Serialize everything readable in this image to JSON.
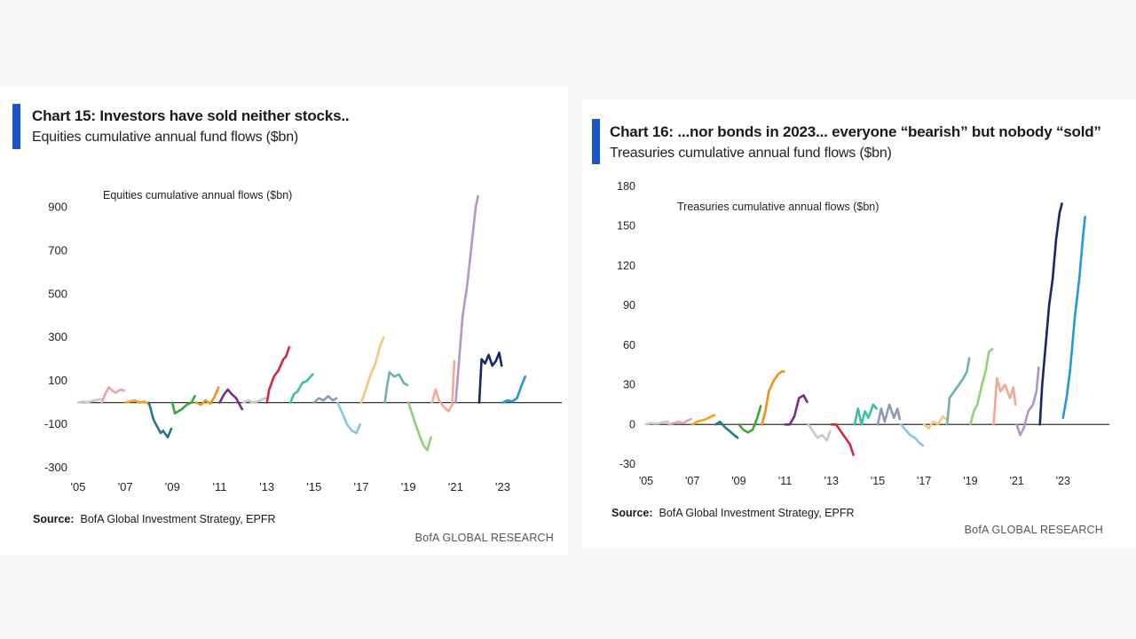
{
  "panels": [
    {
      "id": "chart15",
      "title": "Chart 15: Investors have sold neither stocks..",
      "subtitle": "Equities cumulative annual fund flows ($bn)",
      "source_label": "Source:",
      "source_text": "BofA Global Investment Strategy, EPFR",
      "brand": "BofA GLOBAL RESEARCH"
    },
    {
      "id": "chart16",
      "title": "Chart 16: ...nor bonds in 2023...  everyone “bearish” but nobody “sold”",
      "subtitle": "Treasuries cumulative annual fund flows ($bn)",
      "source_label": "Source:",
      "source_text": "BofA Global Investment Strategy, EPFR",
      "brand": "BofA GLOBAL RESEARCH"
    }
  ],
  "chart_data": [
    {
      "type": "line",
      "title": "Equities cumulative annual flows ($bn)",
      "xlabel": "",
      "ylabel": "",
      "xlim": [
        2005,
        2025.5
      ],
      "ylim": [
        -300,
        1000
      ],
      "yticks": [
        -300,
        -100,
        100,
        300,
        500,
        700,
        900
      ],
      "yticklabels": [
        "-300",
        "-100",
        "100",
        "300",
        "500",
        "700",
        "900"
      ],
      "xticks": [
        2005,
        2007,
        2009,
        2011,
        2013,
        2015,
        2017,
        2019,
        2021,
        2023
      ],
      "xticklabels": [
        "'05",
        "'07",
        "'09",
        "'11",
        "'13",
        "'15",
        "'17",
        "'19",
        "'21",
        "'23"
      ],
      "grid": false,
      "series": [
        {
          "color": "#c8c8c8",
          "x": [
            2005.0,
            2005.2,
            2005.4,
            2005.6,
            2005.8,
            2005.95
          ],
          "y": [
            0,
            5,
            2,
            8,
            12,
            15
          ]
        },
        {
          "color": "#e8a0aa",
          "x": [
            2006.0,
            2006.15,
            2006.3,
            2006.45,
            2006.6,
            2006.8,
            2006.95
          ],
          "y": [
            0,
            40,
            70,
            55,
            45,
            60,
            55
          ]
        },
        {
          "color": "#f0a020",
          "x": [
            2007.0,
            2007.2,
            2007.4,
            2007.6,
            2007.8,
            2007.95
          ],
          "y": [
            0,
            5,
            10,
            0,
            5,
            -5
          ]
        },
        {
          "color": "#1f7a8c",
          "x": [
            2008.0,
            2008.1,
            2008.2,
            2008.4,
            2008.5,
            2008.6,
            2008.8,
            2008.95
          ],
          "y": [
            0,
            -40,
            -80,
            -120,
            -140,
            -130,
            -160,
            -120
          ]
        },
        {
          "color": "#3aa835",
          "x": [
            2009.0,
            2009.1,
            2009.25,
            2009.4,
            2009.6,
            2009.8,
            2009.95
          ],
          "y": [
            0,
            -50,
            -40,
            -30,
            -10,
            0,
            30
          ]
        },
        {
          "color": "#f0901a",
          "x": [
            2010.0,
            2010.2,
            2010.4,
            2010.6,
            2010.8,
            2010.95
          ],
          "y": [
            0,
            -10,
            10,
            -5,
            30,
            70
          ]
        },
        {
          "color": "#7a2a8a",
          "x": [
            2011.0,
            2011.2,
            2011.35,
            2011.5,
            2011.7,
            2011.85,
            2011.95
          ],
          "y": [
            0,
            40,
            60,
            40,
            20,
            -10,
            -30
          ]
        },
        {
          "color": "#c8c8c8",
          "x": [
            2012.0,
            2012.2,
            2012.4,
            2012.6,
            2012.8,
            2012.95
          ],
          "y": [
            0,
            10,
            0,
            5,
            15,
            20
          ]
        },
        {
          "color": "#d0283e",
          "x": [
            2013.0,
            2013.1,
            2013.3,
            2013.5,
            2013.7,
            2013.8,
            2013.95
          ],
          "y": [
            0,
            60,
            120,
            150,
            200,
            210,
            255
          ]
        },
        {
          "color": "#3cbfa8",
          "x": [
            2014.0,
            2014.15,
            2014.3,
            2014.5,
            2014.7,
            2014.85,
            2014.95
          ],
          "y": [
            0,
            40,
            50,
            90,
            100,
            120,
            130
          ]
        },
        {
          "color": "#8a9ab8",
          "x": [
            2015.0,
            2015.2,
            2015.4,
            2015.6,
            2015.8,
            2015.95
          ],
          "y": [
            0,
            20,
            10,
            30,
            10,
            20
          ]
        },
        {
          "color": "#80c8ea",
          "x": [
            2016.0,
            2016.2,
            2016.4,
            2016.6,
            2016.8,
            2016.95
          ],
          "y": [
            0,
            -50,
            -100,
            -130,
            -140,
            -100
          ]
        },
        {
          "color": "#f5c878",
          "x": [
            2017.0,
            2017.2,
            2017.4,
            2017.6,
            2017.8,
            2017.95
          ],
          "y": [
            0,
            60,
            130,
            180,
            260,
            300
          ]
        },
        {
          "color": "#6fb0b0",
          "x": [
            2018.0,
            2018.1,
            2018.2,
            2018.4,
            2018.6,
            2018.8,
            2018.95
          ],
          "y": [
            0,
            80,
            140,
            120,
            130,
            90,
            80
          ]
        },
        {
          "color": "#8fd07a",
          "x": [
            2019.0,
            2019.15,
            2019.3,
            2019.5,
            2019.65,
            2019.8,
            2019.95
          ],
          "y": [
            0,
            -50,
            -100,
            -160,
            -200,
            -220,
            -160
          ]
        },
        {
          "color": "#f5a890",
          "x": [
            2020.0,
            2020.15,
            2020.3,
            2020.5,
            2020.7,
            2020.85,
            2020.95
          ],
          "y": [
            0,
            60,
            10,
            -20,
            -40,
            -10,
            190
          ]
        },
        {
          "color": "#b095c8",
          "x": [
            2021.0,
            2021.15,
            2021.3,
            2021.5,
            2021.7,
            2021.85,
            2021.95
          ],
          "y": [
            0,
            200,
            400,
            550,
            750,
            900,
            950
          ]
        },
        {
          "color": "#17276a",
          "x": [
            2022.0,
            2022.1,
            2022.25,
            2022.4,
            2022.55,
            2022.7,
            2022.85,
            2022.95
          ],
          "y": [
            0,
            200,
            180,
            220,
            170,
            190,
            230,
            170
          ]
        },
        {
          "color": "#2298d8",
          "x": [
            2023.0,
            2023.2,
            2023.4,
            2023.6,
            2023.8,
            2023.95
          ],
          "y": [
            0,
            10,
            5,
            20,
            80,
            120
          ]
        }
      ]
    },
    {
      "type": "line",
      "title": "Treasuries cumulative annual flows ($bn)",
      "xlabel": "",
      "ylabel": "",
      "xlim": [
        2005,
        2025.0
      ],
      "ylim": [
        -30,
        180
      ],
      "yticks": [
        -30,
        0,
        30,
        60,
        90,
        120,
        150,
        180
      ],
      "yticklabels": [
        "-30",
        "0",
        "30",
        "60",
        "90",
        "120",
        "150",
        "180"
      ],
      "xticks": [
        2005,
        2007,
        2009,
        2011,
        2013,
        2015,
        2017,
        2019,
        2021,
        2023
      ],
      "xticklabels": [
        "'05",
        "'07",
        "'09",
        "'11",
        "'13",
        "'15",
        "'17",
        "'19",
        "'21",
        "'23"
      ],
      "grid": false,
      "series": [
        {
          "color": "#c8c8c8",
          "x": [
            2005.0,
            2005.2,
            2005.4,
            2005.6,
            2005.8,
            2005.95
          ],
          "y": [
            0,
            1,
            0.5,
            1,
            2,
            2
          ]
        },
        {
          "color": "#e8a0aa",
          "x": [
            2006.0,
            2006.2,
            2006.4,
            2006.6,
            2006.8,
            2006.95
          ],
          "y": [
            0,
            1,
            2,
            1,
            3,
            4
          ]
        },
        {
          "color": "#f0a020",
          "x": [
            2007.0,
            2007.2,
            2007.4,
            2007.6,
            2007.8,
            2007.95
          ],
          "y": [
            0,
            2,
            3,
            4,
            6,
            7
          ]
        },
        {
          "color": "#1f7a8c",
          "x": [
            2008.0,
            2008.2,
            2008.4,
            2008.6,
            2008.8,
            2008.95
          ],
          "y": [
            0,
            2,
            -2,
            -5,
            -8,
            -10
          ]
        },
        {
          "color": "#3aa835",
          "x": [
            2009.0,
            2009.2,
            2009.4,
            2009.6,
            2009.8,
            2009.95
          ],
          "y": [
            0,
            -4,
            -6,
            -4,
            5,
            14
          ]
        },
        {
          "color": "#f0901a",
          "x": [
            2010.0,
            2010.15,
            2010.3,
            2010.5,
            2010.7,
            2010.85,
            2010.95
          ],
          "y": [
            0,
            10,
            25,
            33,
            38,
            40,
            40
          ]
        },
        {
          "color": "#7a2a8a",
          "x": [
            2011.0,
            2011.2,
            2011.4,
            2011.6,
            2011.8,
            2011.95
          ],
          "y": [
            0,
            0,
            6,
            20,
            22,
            17
          ]
        },
        {
          "color": "#c8c8c8",
          "x": [
            2012.0,
            2012.2,
            2012.4,
            2012.6,
            2012.8,
            2012.95
          ],
          "y": [
            0,
            -5,
            -10,
            -8,
            -12,
            -5
          ]
        },
        {
          "color": "#d0283e",
          "x": [
            2013.0,
            2013.2,
            2013.4,
            2013.6,
            2013.8,
            2013.95
          ],
          "y": [
            0,
            0,
            -5,
            -10,
            -15,
            -23
          ]
        },
        {
          "color": "#3cbfa8",
          "x": [
            2014.0,
            2014.15,
            2014.3,
            2014.45,
            2014.6,
            2014.8,
            2014.95
          ],
          "y": [
            0,
            12,
            0,
            10,
            5,
            15,
            12
          ]
        },
        {
          "color": "#8a9ab8",
          "x": [
            2015.0,
            2015.15,
            2015.3,
            2015.5,
            2015.7,
            2015.85,
            2015.95
          ],
          "y": [
            0,
            12,
            2,
            15,
            5,
            12,
            4
          ]
        },
        {
          "color": "#80c8ea",
          "x": [
            2016.0,
            2016.2,
            2016.4,
            2016.6,
            2016.8,
            2016.95
          ],
          "y": [
            0,
            -4,
            -8,
            -10,
            -14,
            -16
          ]
        },
        {
          "color": "#f5c878",
          "x": [
            2017.0,
            2017.2,
            2017.4,
            2017.6,
            2017.8,
            2017.95
          ],
          "y": [
            0,
            -3,
            2,
            0,
            6,
            4
          ]
        },
        {
          "color": "#6fb0b0",
          "x": [
            2018.0,
            2018.1,
            2018.3,
            2018.5,
            2018.7,
            2018.85,
            2018.95
          ],
          "y": [
            0,
            20,
            25,
            30,
            35,
            40,
            50
          ]
        },
        {
          "color": "#8fd07a",
          "x": [
            2019.0,
            2019.15,
            2019.3,
            2019.5,
            2019.65,
            2019.8,
            2019.95
          ],
          "y": [
            0,
            10,
            15,
            30,
            40,
            55,
            57
          ]
        },
        {
          "color": "#f5a890",
          "x": [
            2020.0,
            2020.15,
            2020.3,
            2020.5,
            2020.7,
            2020.85,
            2020.95
          ],
          "y": [
            0,
            35,
            25,
            30,
            20,
            28,
            15
          ]
        },
        {
          "color": "#b095c8",
          "x": [
            2021.0,
            2021.15,
            2021.3,
            2021.5,
            2021.7,
            2021.85,
            2021.95
          ],
          "y": [
            0,
            -8,
            -3,
            10,
            15,
            25,
            43
          ]
        },
        {
          "color": "#17276a",
          "x": [
            2022.0,
            2022.1,
            2022.25,
            2022.4,
            2022.55,
            2022.7,
            2022.85,
            2022.95
          ],
          "y": [
            0,
            30,
            60,
            90,
            110,
            140,
            160,
            167
          ]
        },
        {
          "color": "#2298d8",
          "x": [
            2023.0,
            2023.15,
            2023.3,
            2023.5,
            2023.7,
            2023.85,
            2023.95
          ],
          "y": [
            5,
            20,
            40,
            80,
            110,
            140,
            157
          ]
        }
      ]
    }
  ]
}
